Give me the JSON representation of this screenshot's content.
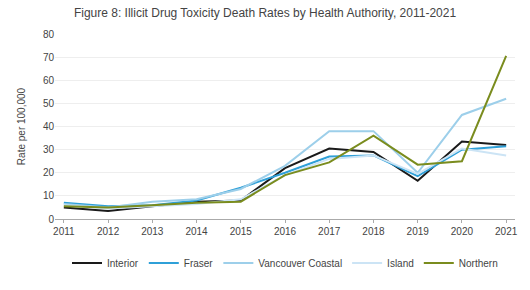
{
  "chart_data": {
    "type": "line",
    "title": "Figure 8: Illicit Drug Toxicity Death Rates by Health Authority, 2011-2021",
    "ylabel": "Rate per 100,000",
    "x": [
      2011,
      2012,
      2013,
      2014,
      2015,
      2016,
      2017,
      2018,
      2019,
      2020,
      2021
    ],
    "series": [
      {
        "name": "Interior",
        "color": "#1a1a1a",
        "values": [
          5.0,
          3.5,
          5.5,
          7.5,
          8.0,
          22.0,
          30.5,
          29.0,
          16.5,
          33.5,
          32.0
        ]
      },
      {
        "name": "Fraser",
        "color": "#2fa0d8",
        "values": [
          7.0,
          5.5,
          6.0,
          8.0,
          13.5,
          20.0,
          27.0,
          27.5,
          18.5,
          30.0,
          31.5
        ]
      },
      {
        "name": "Vancouver Coastal",
        "color": "#9dcfea",
        "values": [
          6.5,
          5.0,
          7.5,
          8.5,
          13.0,
          23.0,
          38.0,
          38.0,
          20.0,
          45.0,
          52.0
        ]
      },
      {
        "name": "Island",
        "color": "#cce4f5",
        "values": [
          6.0,
          4.5,
          5.5,
          6.5,
          8.5,
          19.0,
          26.0,
          27.5,
          19.5,
          30.5,
          27.5
        ]
      },
      {
        "name": "Northern",
        "color": "#7a8c1e",
        "values": [
          5.5,
          5.0,
          6.0,
          7.0,
          7.5,
          19.0,
          24.5,
          36.0,
          23.5,
          25.0,
          70.5
        ]
      }
    ],
    "xlim": [
      2010.8,
      2021.2
    ],
    "xticks": [
      2011,
      2012,
      2013,
      2014,
      2015,
      2016,
      2017,
      2018,
      2019,
      2020,
      2021
    ],
    "ylim": [
      0,
      80
    ],
    "yticks": [
      0,
      10,
      20,
      30,
      40,
      50,
      60,
      70,
      80
    ],
    "grid": true,
    "legend": "bottom"
  }
}
